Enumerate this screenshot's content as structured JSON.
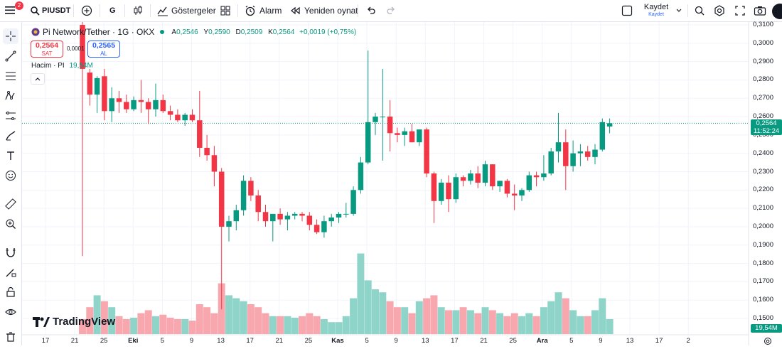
{
  "toolbar": {
    "notification_count": "2",
    "symbol": "PIUSDT",
    "interval": "G",
    "indicators_label": "Göstergeler",
    "alarm_label": "Alarm",
    "replay_label": "Yeniden oynat",
    "save_label": "Kaydet",
    "save_sub_label": "Kaydet"
  },
  "legend": {
    "title": "Pi Network/Tether · 1G · OKX",
    "o_key": "A",
    "o_val": "0,2546",
    "h_key": "Y",
    "h_val": "0,2590",
    "l_key": "D",
    "l_val": "0,2509",
    "c_key": "K",
    "c_val": "0,2564",
    "change": "+0,0019 (+0,75%)",
    "sell_price": "0,2564",
    "sell_label": "SAT",
    "spread": "0,0001",
    "buy_price": "0,2565",
    "buy_label": "AL",
    "volume_label": "Hacim · PI",
    "volume_value": "19,54M"
  },
  "price_axis": {
    "ticks": [
      "0,3100",
      "0,3000",
      "0,2900",
      "0,2800",
      "0,2700",
      "0,2600",
      "0,2500",
      "0,2400",
      "0,2300",
      "0,2200",
      "0,2100",
      "0,2000",
      "0,1900",
      "0,1800",
      "0,1700",
      "0,1600",
      "0,1500"
    ],
    "last_price": "0,2564",
    "countdown": "11:52:24",
    "volume_badge": "19,54M"
  },
  "logo_text": "TradingView",
  "colors": {
    "up": "#089981",
    "down": "#f23645",
    "vol_up": "#8fd4c9",
    "vol_down": "#f7a7ad",
    "accent": "#2962ff"
  },
  "chart_data": {
    "type": "candlestick",
    "title": "Pi Network/Tether · 1G · OKX",
    "ylim": [
      0.15,
      0.31
    ],
    "x_tick_labels": [
      "17",
      "21",
      "25",
      "Eki",
      "5",
      "9",
      "13",
      "17",
      "21",
      "25",
      "Kas",
      "5",
      "9",
      "13",
      "17",
      "21",
      "25",
      "Ara",
      "5",
      "9",
      "13",
      "17",
      "2"
    ],
    "last_price": 0.2564,
    "candles": [
      {
        "o": 0.31,
        "h": 0.318,
        "l": 0.184,
        "c": 0.286,
        "v": 0.5
      },
      {
        "o": 0.284,
        "h": 0.286,
        "l": 0.266,
        "c": 0.272,
        "v": 0.9
      },
      {
        "o": 0.272,
        "h": 0.282,
        "l": 0.262,
        "c": 0.281,
        "v": 1.3
      },
      {
        "o": 0.282,
        "h": 0.286,
        "l": 0.258,
        "c": 0.263,
        "v": 1.1
      },
      {
        "o": 0.263,
        "h": 0.276,
        "l": 0.257,
        "c": 0.27,
        "v": 0.9
      },
      {
        "o": 0.27,
        "h": 0.274,
        "l": 0.262,
        "c": 0.268,
        "v": 0.6
      },
      {
        "o": 0.268,
        "h": 0.272,
        "l": 0.262,
        "c": 0.264,
        "v": 0.5
      },
      {
        "o": 0.264,
        "h": 0.271,
        "l": 0.263,
        "c": 0.269,
        "v": 0.55
      },
      {
        "o": 0.269,
        "h": 0.28,
        "l": 0.262,
        "c": 0.268,
        "v": 0.7
      },
      {
        "o": 0.268,
        "h": 0.27,
        "l": 0.256,
        "c": 0.264,
        "v": 0.8
      },
      {
        "o": 0.264,
        "h": 0.278,
        "l": 0.26,
        "c": 0.269,
        "v": 0.6
      },
      {
        "o": 0.269,
        "h": 0.272,
        "l": 0.262,
        "c": 0.263,
        "v": 0.65
      },
      {
        "o": 0.263,
        "h": 0.266,
        "l": 0.258,
        "c": 0.261,
        "v": 0.55
      },
      {
        "o": 0.261,
        "h": 0.264,
        "l": 0.257,
        "c": 0.258,
        "v": 0.5
      },
      {
        "o": 0.258,
        "h": 0.262,
        "l": 0.255,
        "c": 0.261,
        "v": 0.5
      },
      {
        "o": 0.261,
        "h": 0.264,
        "l": 0.257,
        "c": 0.258,
        "v": 0.45
      },
      {
        "o": 0.258,
        "h": 0.274,
        "l": 0.238,
        "c": 0.243,
        "v": 1.0
      },
      {
        "o": 0.243,
        "h": 0.25,
        "l": 0.236,
        "c": 0.239,
        "v": 0.9
      },
      {
        "o": 0.239,
        "h": 0.244,
        "l": 0.222,
        "c": 0.23,
        "v": 0.7
      },
      {
        "o": 0.23,
        "h": 0.232,
        "l": 0.155,
        "c": 0.2,
        "v": 1.7
      },
      {
        "o": 0.2,
        "h": 0.206,
        "l": 0.192,
        "c": 0.203,
        "v": 1.3
      },
      {
        "o": 0.203,
        "h": 0.212,
        "l": 0.198,
        "c": 0.209,
        "v": 1.2
      },
      {
        "o": 0.209,
        "h": 0.228,
        "l": 0.206,
        "c": 0.225,
        "v": 1.1
      },
      {
        "o": 0.225,
        "h": 0.227,
        "l": 0.214,
        "c": 0.217,
        "v": 1.0
      },
      {
        "o": 0.217,
        "h": 0.22,
        "l": 0.203,
        "c": 0.208,
        "v": 0.9
      },
      {
        "o": 0.208,
        "h": 0.212,
        "l": 0.2,
        "c": 0.203,
        "v": 0.7
      },
      {
        "o": 0.203,
        "h": 0.206,
        "l": 0.192,
        "c": 0.207,
        "v": 0.6
      },
      {
        "o": 0.207,
        "h": 0.21,
        "l": 0.201,
        "c": 0.204,
        "v": 0.6
      },
      {
        "o": 0.204,
        "h": 0.208,
        "l": 0.198,
        "c": 0.206,
        "v": 0.6
      },
      {
        "o": 0.206,
        "h": 0.208,
        "l": 0.204,
        "c": 0.207,
        "v": 0.55
      },
      {
        "o": 0.207,
        "h": 0.208,
        "l": 0.203,
        "c": 0.206,
        "v": 0.6
      },
      {
        "o": 0.206,
        "h": 0.208,
        "l": 0.198,
        "c": 0.201,
        "v": 0.7
      },
      {
        "o": 0.201,
        "h": 0.204,
        "l": 0.196,
        "c": 0.197,
        "v": 0.6
      },
      {
        "o": 0.197,
        "h": 0.206,
        "l": 0.194,
        "c": 0.203,
        "v": 0.5
      },
      {
        "o": 0.203,
        "h": 0.207,
        "l": 0.2,
        "c": 0.205,
        "v": 0.4
      },
      {
        "o": 0.205,
        "h": 0.208,
        "l": 0.202,
        "c": 0.207,
        "v": 0.4
      },
      {
        "o": 0.207,
        "h": 0.213,
        "l": 0.205,
        "c": 0.207,
        "v": 0.6
      },
      {
        "o": 0.207,
        "h": 0.222,
        "l": 0.206,
        "c": 0.22,
        "v": 1.2
      },
      {
        "o": 0.22,
        "h": 0.238,
        "l": 0.218,
        "c": 0.235,
        "v": 2.7
      },
      {
        "o": 0.235,
        "h": 0.296,
        "l": 0.234,
        "c": 0.257,
        "v": 1.8
      },
      {
        "o": 0.257,
        "h": 0.262,
        "l": 0.25,
        "c": 0.26,
        "v": 1.5
      },
      {
        "o": 0.26,
        "h": 0.286,
        "l": 0.236,
        "c": 0.26,
        "v": 1.4
      },
      {
        "o": 0.26,
        "h": 0.269,
        "l": 0.241,
        "c": 0.251,
        "v": 1.1
      },
      {
        "o": 0.251,
        "h": 0.254,
        "l": 0.246,
        "c": 0.25,
        "v": 0.9
      },
      {
        "o": 0.25,
        "h": 0.254,
        "l": 0.244,
        "c": 0.252,
        "v": 0.9
      },
      {
        "o": 0.252,
        "h": 0.256,
        "l": 0.246,
        "c": 0.246,
        "v": 0.7
      },
      {
        "o": 0.246,
        "h": 0.252,
        "l": 0.244,
        "c": 0.253,
        "v": 1.1
      },
      {
        "o": 0.253,
        "h": 0.254,
        "l": 0.227,
        "c": 0.229,
        "v": 1.2
      },
      {
        "o": 0.229,
        "h": 0.23,
        "l": 0.202,
        "c": 0.214,
        "v": 1.3
      },
      {
        "o": 0.214,
        "h": 0.226,
        "l": 0.212,
        "c": 0.224,
        "v": 0.9
      },
      {
        "o": 0.224,
        "h": 0.228,
        "l": 0.208,
        "c": 0.215,
        "v": 0.8
      },
      {
        "o": 0.215,
        "h": 0.229,
        "l": 0.213,
        "c": 0.227,
        "v": 0.8
      },
      {
        "o": 0.227,
        "h": 0.228,
        "l": 0.222,
        "c": 0.225,
        "v": 0.9
      },
      {
        "o": 0.225,
        "h": 0.231,
        "l": 0.223,
        "c": 0.229,
        "v": 0.8
      },
      {
        "o": 0.229,
        "h": 0.233,
        "l": 0.221,
        "c": 0.224,
        "v": 0.7
      },
      {
        "o": 0.224,
        "h": 0.236,
        "l": 0.222,
        "c": 0.234,
        "v": 0.9
      },
      {
        "o": 0.234,
        "h": 0.234,
        "l": 0.22,
        "c": 0.222,
        "v": 0.8
      },
      {
        "o": 0.222,
        "h": 0.225,
        "l": 0.219,
        "c": 0.225,
        "v": 0.7
      },
      {
        "o": 0.225,
        "h": 0.226,
        "l": 0.216,
        "c": 0.218,
        "v": 0.6
      },
      {
        "o": 0.218,
        "h": 0.223,
        "l": 0.209,
        "c": 0.217,
        "v": 0.7
      },
      {
        "o": 0.217,
        "h": 0.221,
        "l": 0.214,
        "c": 0.22,
        "v": 0.6
      },
      {
        "o": 0.22,
        "h": 0.23,
        "l": 0.219,
        "c": 0.228,
        "v": 0.7
      },
      {
        "o": 0.228,
        "h": 0.23,
        "l": 0.222,
        "c": 0.227,
        "v": 0.6
      },
      {
        "o": 0.227,
        "h": 0.239,
        "l": 0.225,
        "c": 0.229,
        "v": 0.9
      },
      {
        "o": 0.229,
        "h": 0.243,
        "l": 0.228,
        "c": 0.241,
        "v": 1.1
      },
      {
        "o": 0.241,
        "h": 0.262,
        "l": 0.235,
        "c": 0.246,
        "v": 1.4
      },
      {
        "o": 0.246,
        "h": 0.253,
        "l": 0.22,
        "c": 0.233,
        "v": 1.2
      },
      {
        "o": 0.233,
        "h": 0.247,
        "l": 0.23,
        "c": 0.24,
        "v": 0.8
      },
      {
        "o": 0.24,
        "h": 0.245,
        "l": 0.233,
        "c": 0.241,
        "v": 0.6
      },
      {
        "o": 0.241,
        "h": 0.244,
        "l": 0.236,
        "c": 0.238,
        "v": 0.6
      },
      {
        "o": 0.238,
        "h": 0.245,
        "l": 0.234,
        "c": 0.242,
        "v": 0.8
      },
      {
        "o": 0.242,
        "h": 0.259,
        "l": 0.241,
        "c": 0.257,
        "v": 1.2
      },
      {
        "o": 0.2546,
        "h": 0.259,
        "l": 0.2509,
        "c": 0.2564,
        "v": 0.5
      }
    ]
  }
}
